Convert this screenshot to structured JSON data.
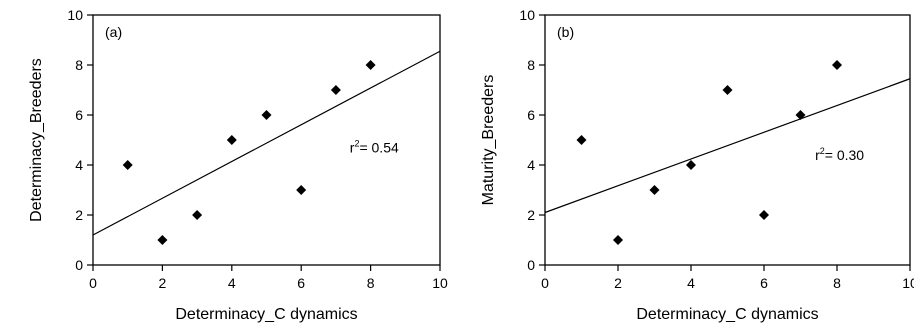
{
  "chart_data": [
    {
      "type": "scatter",
      "panel_label": "(a)",
      "xlabel": "Determinacy_C dynamics",
      "ylabel": "Determinacy_Breeders",
      "xlim": [
        0,
        10
      ],
      "ylim": [
        0,
        10
      ],
      "xticks": [
        0,
        2,
        4,
        6,
        8,
        10
      ],
      "yticks": [
        0,
        2,
        4,
        6,
        8,
        10
      ],
      "points": [
        {
          "x": 1,
          "y": 4
        },
        {
          "x": 2,
          "y": 1
        },
        {
          "x": 3,
          "y": 2
        },
        {
          "x": 4,
          "y": 5
        },
        {
          "x": 5,
          "y": 6
        },
        {
          "x": 6,
          "y": 3
        },
        {
          "x": 7,
          "y": 7
        },
        {
          "x": 8,
          "y": 8
        }
      ],
      "regression": {
        "intercept": 1.2,
        "slope": 0.735
      },
      "annotation": {
        "prefix": "r",
        "sup": "2",
        "text": "= 0.54",
        "x": 7.4,
        "y": 4.5
      },
      "grid": false
    },
    {
      "type": "scatter",
      "panel_label": "(b)",
      "xlabel": "Determinacy_C dynamics",
      "ylabel": "Maturity_Breeders",
      "xlim": [
        0,
        10
      ],
      "ylim": [
        0,
        10
      ],
      "xticks": [
        0,
        2,
        4,
        6,
        8,
        10
      ],
      "yticks": [
        0,
        2,
        4,
        6,
        8,
        10
      ],
      "points": [
        {
          "x": 1,
          "y": 5
        },
        {
          "x": 2,
          "y": 1
        },
        {
          "x": 3,
          "y": 3
        },
        {
          "x": 4,
          "y": 4
        },
        {
          "x": 5,
          "y": 7
        },
        {
          "x": 6,
          "y": 2
        },
        {
          "x": 7,
          "y": 6
        },
        {
          "x": 8,
          "y": 8
        }
      ],
      "regression": {
        "intercept": 2.1,
        "slope": 0.535
      },
      "annotation": {
        "prefix": "r",
        "sup": "2",
        "text": "= 0.30",
        "x": 7.4,
        "y": 4.2
      },
      "grid": false
    }
  ]
}
